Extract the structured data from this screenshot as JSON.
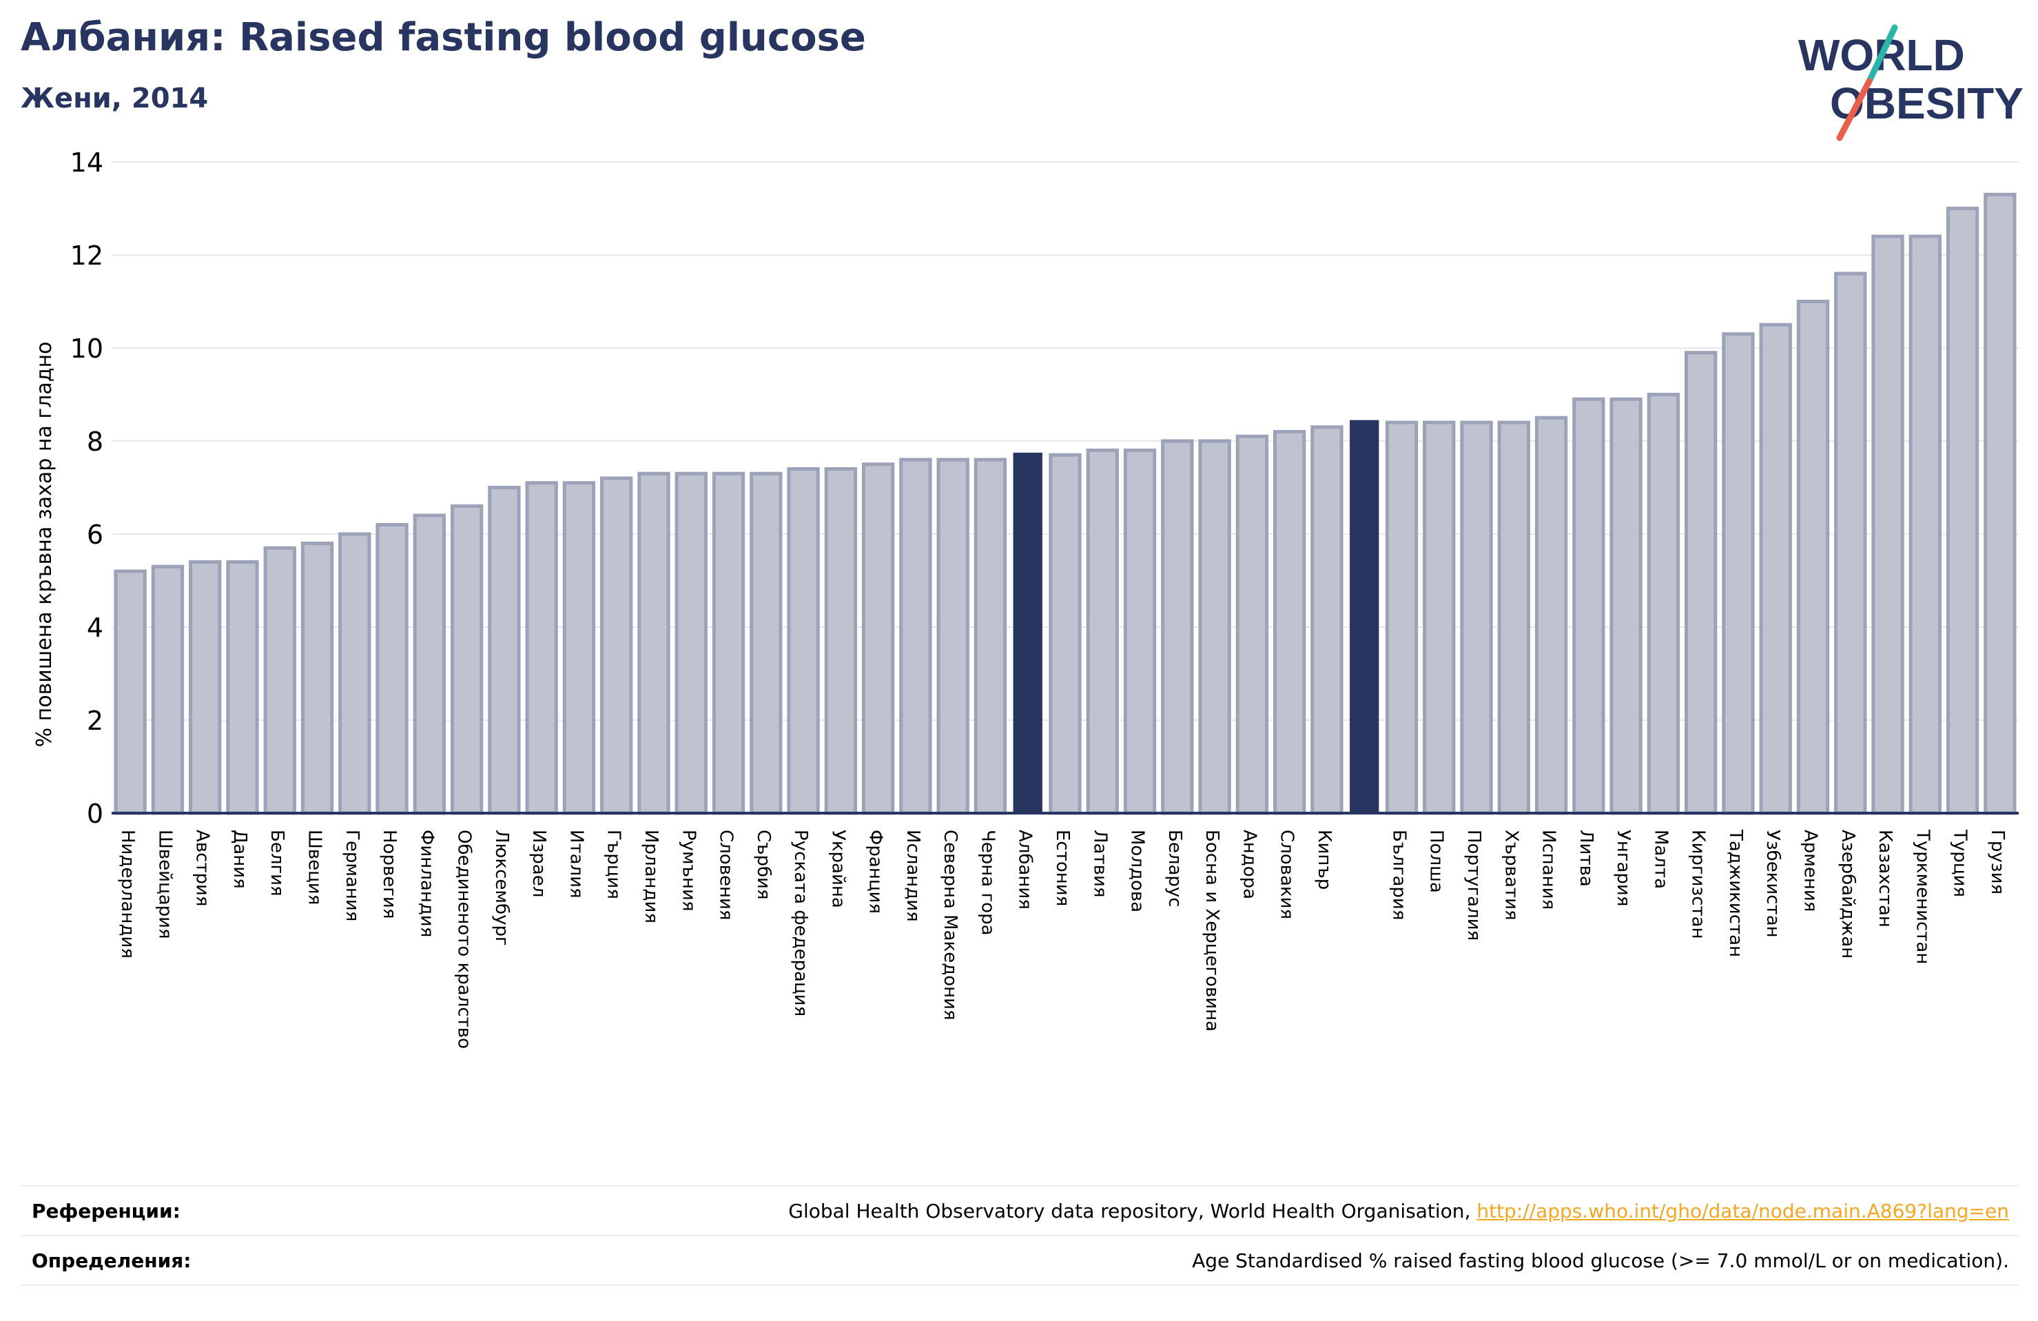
{
  "header": {
    "title": "Албания: Raised fasting blood glucose",
    "subtitle": "Жени, 2014"
  },
  "logo": {
    "line1": "WORLD",
    "line2": "OBESITY"
  },
  "colors": {
    "bar": "#bfc3cf",
    "bar_stroke": "#9ca2b8",
    "highlight": "#283560",
    "grid": "#e8e8e8",
    "axis": "#283560",
    "logo_text": "#283560",
    "logo_slash_top": "#2bb5a9",
    "logo_slash_bottom": "#e8604c"
  },
  "chart_data": {
    "type": "bar",
    "ylabel": "% повишена кръвна захар на гладно",
    "ylim": [
      0,
      14
    ],
    "yticks": [
      0,
      2,
      4,
      6,
      8,
      10,
      12,
      14
    ],
    "grid": true,
    "categories": [
      "Нидерландия",
      "Швейцария",
      "Австрия",
      "Дания",
      "Белгия",
      "Швеция",
      "Германия",
      "Норвегия",
      "Финландия",
      "Обединеното кралство",
      "Люксембург",
      "Израел",
      "Италия",
      "Гърция",
      "Ирландия",
      "Румъния",
      "Словения",
      "Сърбия",
      "Руската федерация",
      "Украйна",
      "Франция",
      "Исландия",
      "Северна Македония",
      "Черна гора",
      "Албания",
      "Естония",
      "Латвия",
      "Молдова",
      "Беларус",
      "Босна и Херцеговина",
      "Андора",
      "Словакия",
      "Кипър",
      "",
      "България",
      "Полша",
      "Португалия",
      "Хърватия",
      "Испания",
      "Литва",
      "Унгария",
      "Малта",
      "Киргизстан",
      "Таджикистан",
      "Узбекистан",
      "Армения",
      "Азербайджан",
      "Казахстан",
      "Туркменистан",
      "Турция",
      "Грузия"
    ],
    "values": [
      5.2,
      5.3,
      5.4,
      5.4,
      5.7,
      5.8,
      6.0,
      6.2,
      6.4,
      6.6,
      7.0,
      7.1,
      7.1,
      7.2,
      7.3,
      7.3,
      7.3,
      7.3,
      7.4,
      7.4,
      7.5,
      7.6,
      7.6,
      7.6,
      7.75,
      7.7,
      7.8,
      7.8,
      8.0,
      8.0,
      8.1,
      8.2,
      8.3,
      8.45,
      8.4,
      8.4,
      8.4,
      8.4,
      8.5,
      8.9,
      8.9,
      9.0,
      9.9,
      10.3,
      10.5,
      11.0,
      11.6,
      12.4,
      12.4,
      13.0,
      13.3
    ],
    "highlighted": [
      "Албания",
      ""
    ]
  },
  "footer": {
    "references_label": "Референции:",
    "references_text": "Global Health Observatory data repository, World Health Organisation, ",
    "references_link": "http://apps.who.int/gho/data/node.main.A869?lang=en",
    "definitions_label": "Определения:",
    "definitions_text": "Age Standardised % raised fasting blood glucose (>= 7.0 mmol/L or on medication)."
  }
}
